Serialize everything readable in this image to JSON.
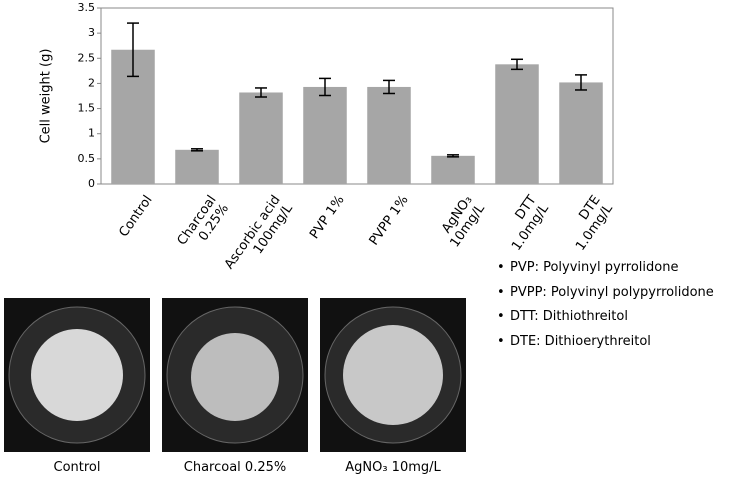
{
  "chart_data": {
    "type": "bar",
    "y_label": "Cell weight (g)",
    "categories": [
      [
        "Control"
      ],
      [
        "Charcoal",
        "0.25%"
      ],
      [
        "Ascorbic acid",
        "100mg/L"
      ],
      [
        "PVP 1%"
      ],
      [
        "PVPP 1%"
      ],
      [
        "AgNO₃",
        "10mg/L"
      ],
      [
        "DTT",
        "1.0mg/L"
      ],
      [
        "DTE",
        "1.0mg/L"
      ]
    ],
    "values": [
      2.67,
      0.68,
      1.82,
      1.93,
      1.93,
      0.56,
      2.38,
      2.02
    ],
    "errors": [
      0.53,
      0.02,
      0.09,
      0.17,
      0.13,
      0.02,
      0.1,
      0.15
    ],
    "color": "#a6a6a6",
    "ylim": [
      0,
      3.5
    ],
    "yticks": [
      0,
      0.5,
      1,
      1.5,
      2,
      2.5,
      3,
      3.5
    ]
  },
  "notes": [
    "PVP: Polyvinyl pyrrolidone",
    "PVPP: Polyvinyl polypyrrolidone",
    "DTT: Dithiothreitol",
    "DTE: Dithioerythreitol"
  ],
  "photos": [
    {
      "caption": "Control"
    },
    {
      "caption": "Charcoal 0.25%"
    },
    {
      "caption": "AgNO₃ 10mg/L"
    }
  ]
}
